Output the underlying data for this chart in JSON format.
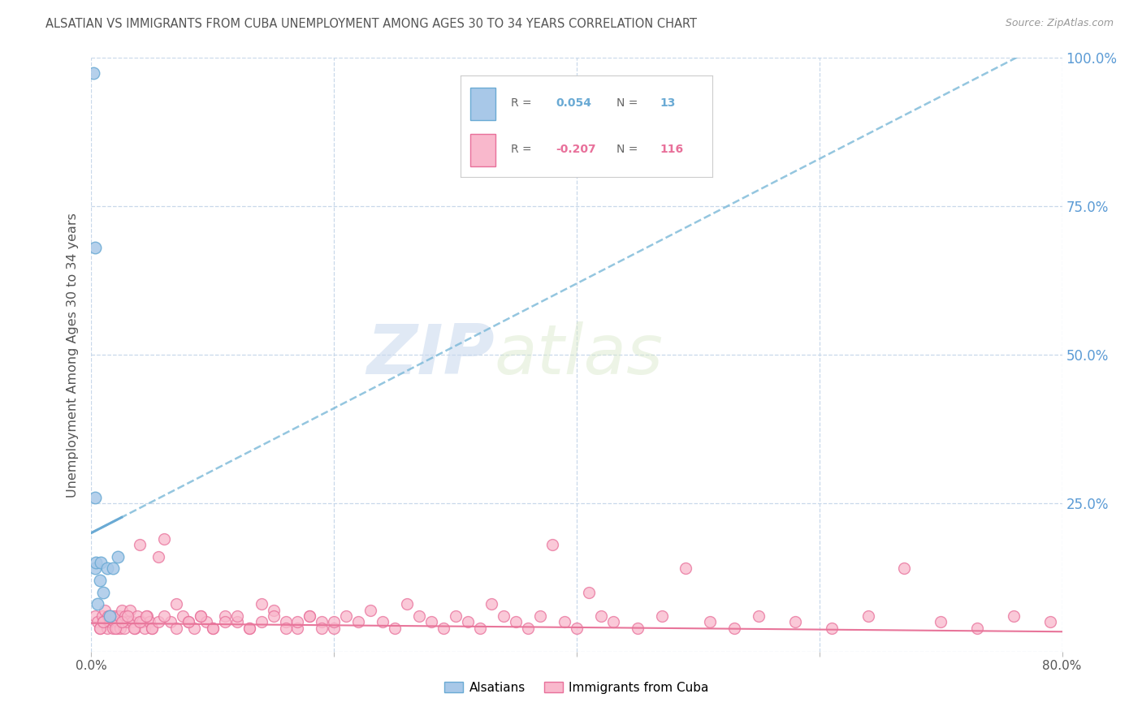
{
  "title": "ALSATIAN VS IMMIGRANTS FROM CUBA UNEMPLOYMENT AMONG AGES 30 TO 34 YEARS CORRELATION CHART",
  "source": "Source: ZipAtlas.com",
  "ylabel": "Unemployment Among Ages 30 to 34 years",
  "xlim": [
    0.0,
    0.8
  ],
  "ylim": [
    0.0,
    1.0
  ],
  "alsatian_color": "#a8c8e8",
  "alsatian_edge_color": "#6aaad4",
  "cuba_color": "#f9b8cc",
  "cuba_edge_color": "#e8709a",
  "alsatian_line_color": "#7ab8d8",
  "cuba_line_color": "#e8759a",
  "alsatian_R": 0.054,
  "alsatian_N": 13,
  "cuba_R": -0.207,
  "cuba_N": 116,
  "watermark_zip": "ZIP",
  "watermark_atlas": "atlas",
  "background_color": "#ffffff",
  "grid_color": "#c8d8ea",
  "right_axis_color": "#5b9bd5",
  "title_color": "#555555",
  "source_color": "#999999",
  "ylabel_color": "#555555",
  "xtick_color": "#555555",
  "als_line_slope": 1.05,
  "als_line_intercept": 0.2,
  "cuba_line_slope": -0.018,
  "cuba_line_intercept": 0.048,
  "alsatian_scatter_x": [
    0.002,
    0.003,
    0.003,
    0.004,
    0.005,
    0.007,
    0.008,
    0.01,
    0.013,
    0.015,
    0.018,
    0.022,
    0.003
  ],
  "alsatian_scatter_y": [
    0.975,
    0.68,
    0.14,
    0.15,
    0.08,
    0.12,
    0.15,
    0.1,
    0.14,
    0.06,
    0.14,
    0.16,
    0.26
  ],
  "cuba_scatter_x": [
    0.003,
    0.005,
    0.007,
    0.009,
    0.01,
    0.011,
    0.013,
    0.014,
    0.015,
    0.016,
    0.017,
    0.018,
    0.019,
    0.02,
    0.021,
    0.022,
    0.023,
    0.024,
    0.025,
    0.026,
    0.027,
    0.028,
    0.03,
    0.032,
    0.034,
    0.036,
    0.038,
    0.04,
    0.042,
    0.044,
    0.046,
    0.048,
    0.05,
    0.055,
    0.06,
    0.065,
    0.07,
    0.075,
    0.08,
    0.085,
    0.09,
    0.095,
    0.1,
    0.11,
    0.12,
    0.13,
    0.14,
    0.15,
    0.16,
    0.17,
    0.18,
    0.19,
    0.2,
    0.21,
    0.22,
    0.23,
    0.24,
    0.25,
    0.26,
    0.27,
    0.28,
    0.29,
    0.3,
    0.31,
    0.32,
    0.33,
    0.34,
    0.35,
    0.36,
    0.37,
    0.38,
    0.39,
    0.4,
    0.41,
    0.42,
    0.43,
    0.45,
    0.47,
    0.49,
    0.51,
    0.53,
    0.55,
    0.58,
    0.61,
    0.64,
    0.67,
    0.7,
    0.73,
    0.76,
    0.79,
    0.007,
    0.01,
    0.015,
    0.02,
    0.025,
    0.03,
    0.035,
    0.04,
    0.045,
    0.05,
    0.055,
    0.06,
    0.07,
    0.08,
    0.09,
    0.1,
    0.11,
    0.12,
    0.13,
    0.14,
    0.15,
    0.16,
    0.17,
    0.18,
    0.19,
    0.2
  ],
  "cuba_scatter_y": [
    0.06,
    0.05,
    0.04,
    0.06,
    0.05,
    0.07,
    0.04,
    0.06,
    0.05,
    0.05,
    0.06,
    0.04,
    0.05,
    0.06,
    0.04,
    0.05,
    0.06,
    0.04,
    0.07,
    0.05,
    0.04,
    0.06,
    0.05,
    0.07,
    0.05,
    0.04,
    0.06,
    0.18,
    0.05,
    0.04,
    0.06,
    0.05,
    0.04,
    0.16,
    0.19,
    0.05,
    0.08,
    0.06,
    0.05,
    0.04,
    0.06,
    0.05,
    0.04,
    0.06,
    0.05,
    0.04,
    0.08,
    0.07,
    0.05,
    0.04,
    0.06,
    0.05,
    0.04,
    0.06,
    0.05,
    0.07,
    0.05,
    0.04,
    0.08,
    0.06,
    0.05,
    0.04,
    0.06,
    0.05,
    0.04,
    0.08,
    0.06,
    0.05,
    0.04,
    0.06,
    0.18,
    0.05,
    0.04,
    0.1,
    0.06,
    0.05,
    0.04,
    0.06,
    0.14,
    0.05,
    0.04,
    0.06,
    0.05,
    0.04,
    0.06,
    0.14,
    0.05,
    0.04,
    0.06,
    0.05,
    0.04,
    0.05,
    0.06,
    0.04,
    0.05,
    0.06,
    0.04,
    0.05,
    0.06,
    0.04,
    0.05,
    0.06,
    0.04,
    0.05,
    0.06,
    0.04,
    0.05,
    0.06,
    0.04,
    0.05,
    0.06,
    0.04,
    0.05,
    0.06,
    0.04,
    0.05
  ]
}
